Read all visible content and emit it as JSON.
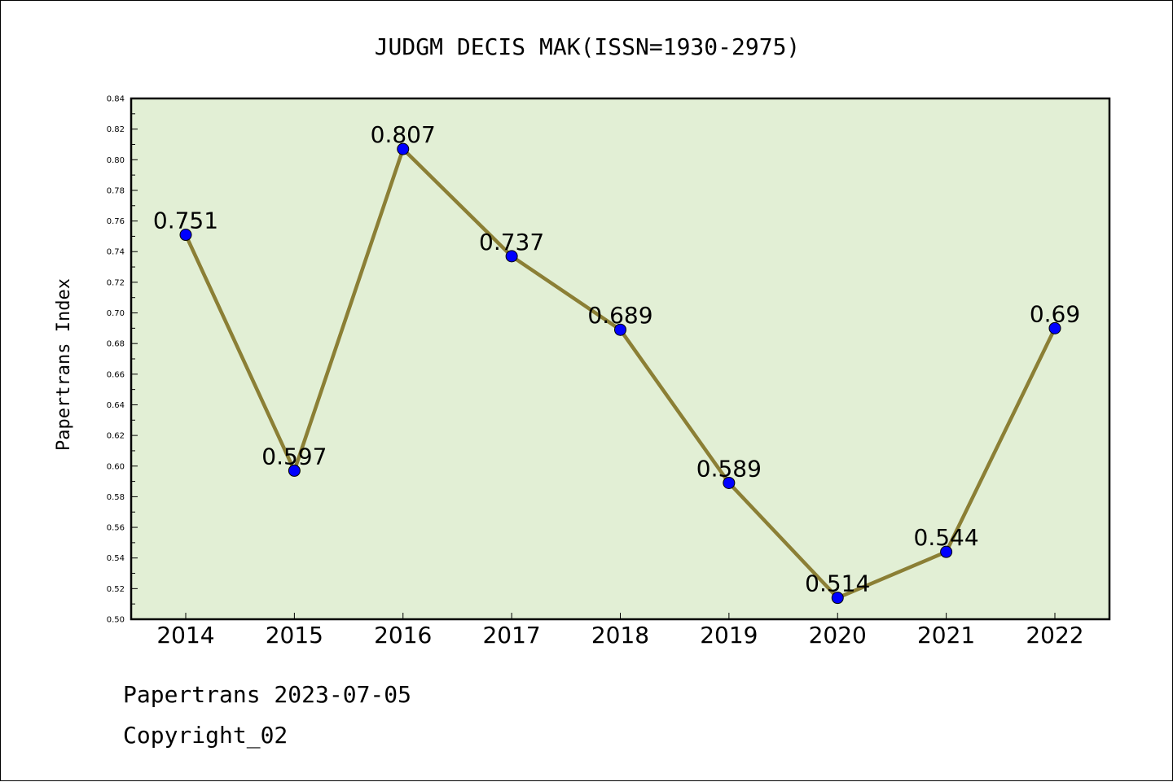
{
  "chart_data": {
    "type": "line",
    "title": "JUDGM DECIS MAK(ISSN=1930-2975)",
    "xlabel": "",
    "ylabel": "Papertrans Index",
    "categories": [
      "2014",
      "2015",
      "2016",
      "2017",
      "2018",
      "2019",
      "2020",
      "2021",
      "2022"
    ],
    "series": [
      {
        "values": [
          0.751,
          0.597,
          0.807,
          0.737,
          0.689,
          0.589,
          0.514,
          0.544,
          0.69
        ],
        "labels": [
          "0.751",
          "0.597",
          "0.807",
          "0.737",
          "0.689",
          "0.589",
          "0.514",
          "0.544",
          "0.69"
        ]
      }
    ],
    "ylim": [
      0.5,
      0.84
    ],
    "yticks": [
      "0.50",
      "0.52",
      "0.54",
      "0.56",
      "0.58",
      "0.60",
      "0.62",
      "0.64",
      "0.66",
      "0.68",
      "0.70",
      "0.72",
      "0.74",
      "0.76",
      "0.78",
      "0.80",
      "0.82",
      "0.84"
    ],
    "grid": false,
    "colors": {
      "plot_background": "#e2efd5",
      "line": "#8b7f35",
      "marker": "#0000ff"
    }
  },
  "footer": {
    "date_line": "Papertrans 2023-07-05",
    "copyright_line": "Copyright_02"
  }
}
